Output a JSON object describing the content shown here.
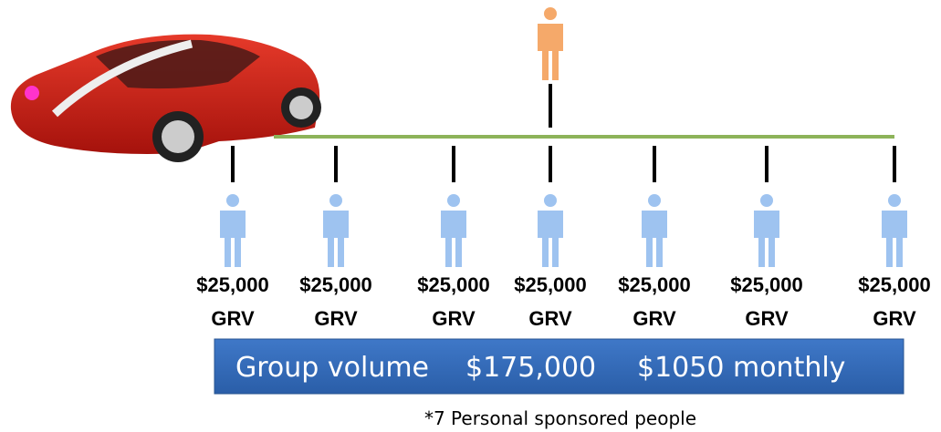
{
  "sponsor": {
    "label": null
  },
  "people": [
    {
      "amount": "$25,000",
      "unit": "GRV"
    },
    {
      "amount": "$25,000",
      "unit": "GRV"
    },
    {
      "amount": "$25,000",
      "unit": "GRV"
    },
    {
      "amount": "$25,000",
      "unit": "GRV"
    },
    {
      "amount": "$25,000",
      "unit": "GRV"
    },
    {
      "amount": "$25,000",
      "unit": "GRV"
    },
    {
      "amount": "$25,000",
      "unit": "GRV"
    }
  ],
  "banner": {
    "label": "Group volume",
    "volume": "$175,000",
    "income": "$1050 monthly"
  },
  "footnote": "*7 Personal sponsored people"
}
